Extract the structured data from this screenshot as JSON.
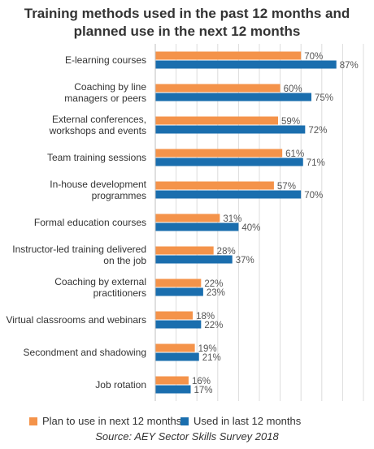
{
  "chart_data": {
    "type": "bar",
    "orientation": "horizontal",
    "title_lines": [
      "Training methods used in the past 12 months and",
      "planned use in the next 12 months"
    ],
    "categories": [
      [
        "E-learning courses"
      ],
      [
        "Coaching by line",
        "managers or peers"
      ],
      [
        "External conferences,",
        "workshops and events"
      ],
      [
        "Team training sessions"
      ],
      [
        "In-house development",
        "programmes"
      ],
      [
        "Formal education courses"
      ],
      [
        "Instructor-led training delivered",
        "on the job"
      ],
      [
        "Coaching by external",
        "practitioners"
      ],
      [
        "Virtual classrooms and webinars"
      ],
      [
        "Secondment and shadowing"
      ],
      [
        "Job rotation"
      ]
    ],
    "series": [
      {
        "name": "Plan to use in next 12 months",
        "color": "#F4934A",
        "values": [
          70,
          60,
          59,
          61,
          57,
          31,
          28,
          22,
          18,
          19,
          16
        ]
      },
      {
        "name": "Used in last 12 months",
        "color": "#1A6EAE",
        "values": [
          87,
          75,
          72,
          71,
          70,
          40,
          37,
          23,
          22,
          21,
          17
        ]
      }
    ],
    "value_suffix": "%",
    "xlim": [
      0,
      100
    ],
    "grid": true,
    "legend_position": "bottom",
    "source": "Source: AEY Sector Skills Survey 2018"
  }
}
